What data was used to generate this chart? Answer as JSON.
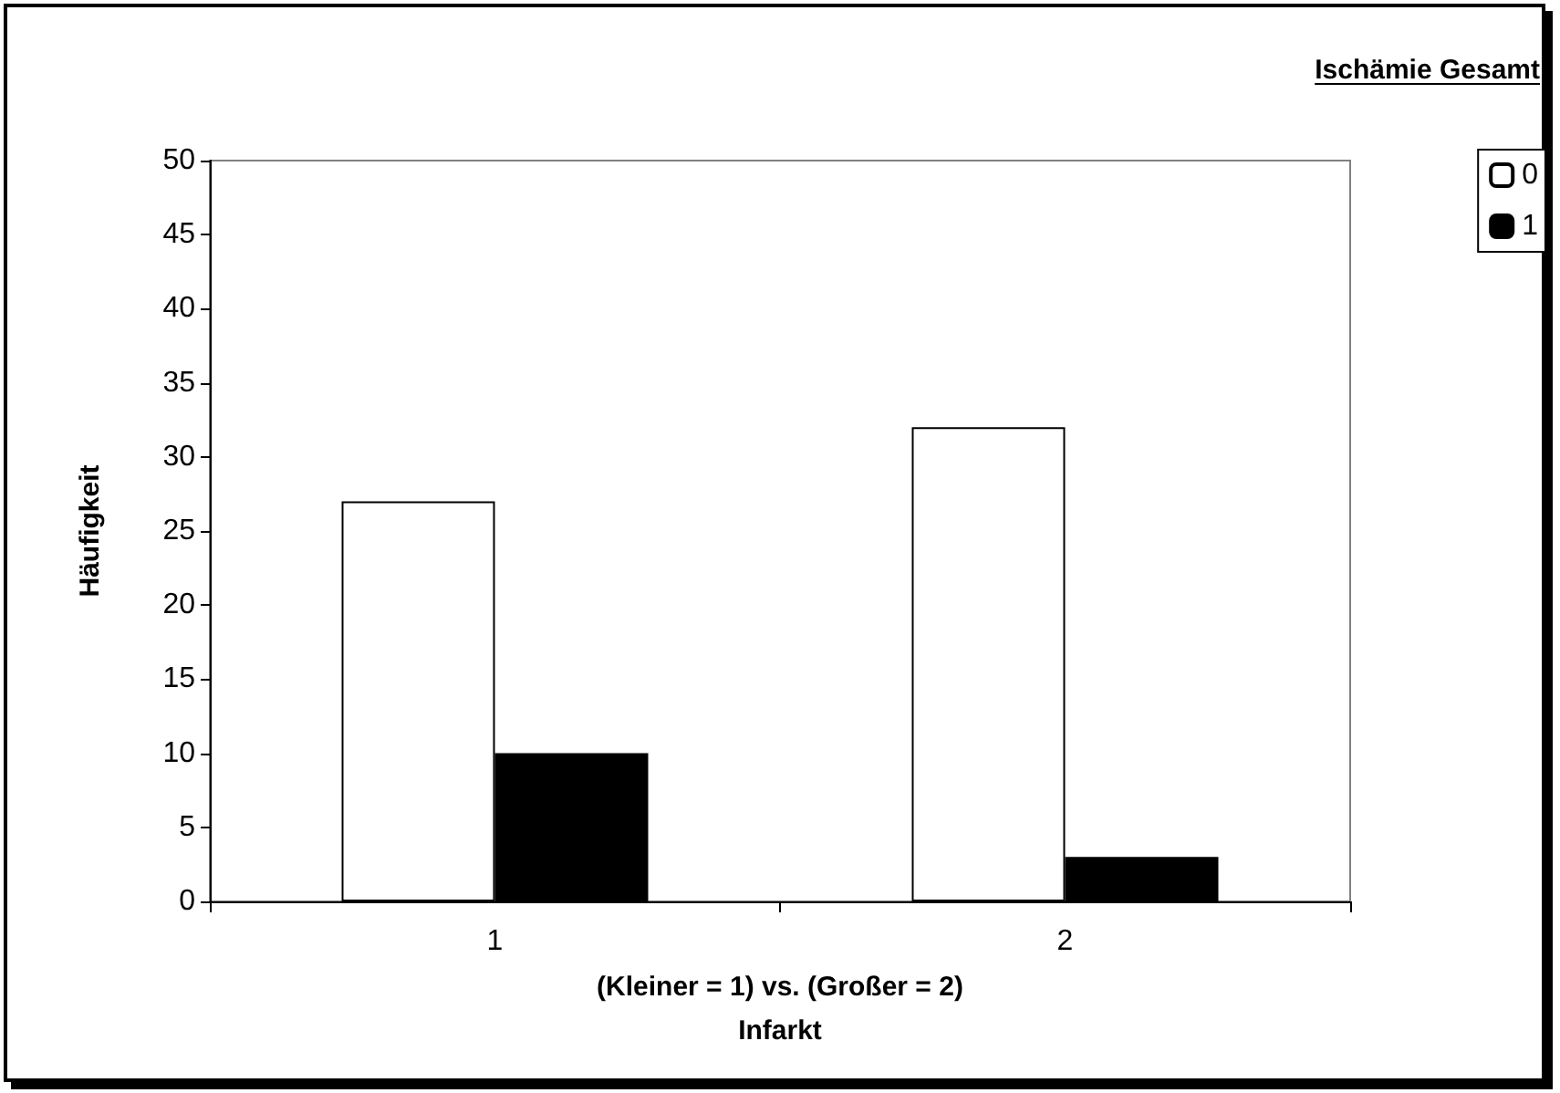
{
  "chart_data": {
    "type": "bar",
    "xlabel": "(Kleiner = 1) vs. (Großer = 2)\nInfarkt",
    "ylabel": "Häufigkeit",
    "legend_title": "Ischämie Gesamt",
    "categories": [
      "1",
      "2"
    ],
    "series": [
      {
        "name": "0",
        "color": "#ffffff",
        "values": [
          27,
          32
        ]
      },
      {
        "name": "1",
        "color": "#000000",
        "values": [
          10,
          3
        ]
      }
    ],
    "ylim": [
      0,
      50
    ],
    "yticks": [
      0,
      5,
      10,
      15,
      20,
      25,
      30,
      35,
      40,
      45,
      50
    ],
    "grid": false,
    "legend": "right"
  }
}
